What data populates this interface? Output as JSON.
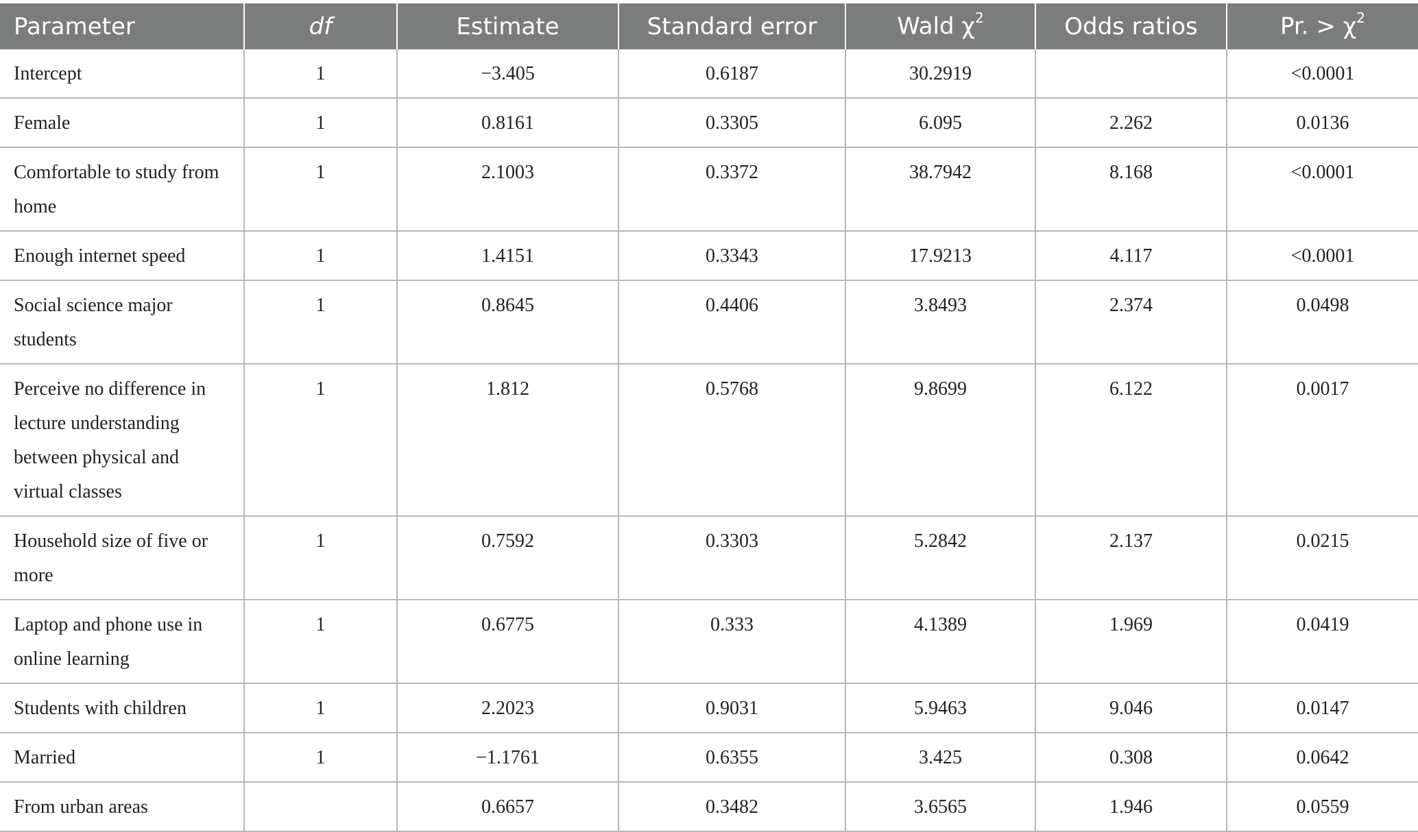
{
  "table": {
    "headers": {
      "parameter": "Parameter",
      "df": "df",
      "estimate": "Estimate",
      "standard_error": "Standard error",
      "wald_prefix": "Wald χ",
      "wald_sup": "2",
      "odds_ratios": "Odds ratios",
      "pr_prefix": "Pr. > χ",
      "pr_sup": "2"
    },
    "rows": [
      {
        "parameter": "Intercept",
        "df": "1",
        "estimate": "−3.405",
        "se": "0.6187",
        "wald": "30.2919",
        "odds": "",
        "pr": "<0.0001"
      },
      {
        "parameter": "Female",
        "df": "1",
        "estimate": "0.8161",
        "se": "0.3305",
        "wald": "6.095",
        "odds": "2.262",
        "pr": "0.0136"
      },
      {
        "parameter": "Comfortable to study from home",
        "df": "1",
        "estimate": "2.1003",
        "se": "0.3372",
        "wald": "38.7942",
        "odds": "8.168",
        "pr": "<0.0001"
      },
      {
        "parameter": "Enough internet speed",
        "df": "1",
        "estimate": "1.4151",
        "se": "0.3343",
        "wald": "17.9213",
        "odds": "4.117",
        "pr": "<0.0001"
      },
      {
        "parameter": "Social science major students",
        "df": "1",
        "estimate": "0.8645",
        "se": "0.4406",
        "wald": "3.8493",
        "odds": "2.374",
        "pr": "0.0498"
      },
      {
        "parameter": "Perceive no difference in lecture understanding between physical and virtual classes",
        "df": "1",
        "estimate": "1.812",
        "se": "0.5768",
        "wald": "9.8699",
        "odds": "6.122",
        "pr": "0.0017"
      },
      {
        "parameter": "Household size of five or more",
        "df": "1",
        "estimate": "0.7592",
        "se": "0.3303",
        "wald": "5.2842",
        "odds": "2.137",
        "pr": "0.0215"
      },
      {
        "parameter": "Laptop and phone use in online learning",
        "df": "1",
        "estimate": "0.6775",
        "se": "0.333",
        "wald": "4.1389",
        "odds": "1.969",
        "pr": "0.0419"
      },
      {
        "parameter": "Students with children",
        "df": "1",
        "estimate": "2.2023",
        "se": "0.9031",
        "wald": "5.9463",
        "odds": "9.046",
        "pr": "0.0147"
      },
      {
        "parameter": "Married",
        "df": "1",
        "estimate": "−1.1761",
        "se": "0.6355",
        "wald": "3.425",
        "odds": "0.308",
        "pr": "0.0642"
      },
      {
        "parameter": "From urban areas",
        "df": "",
        "estimate": "0.6657",
        "se": "0.3482",
        "wald": "3.6565",
        "odds": "1.946",
        "pr": "0.0559"
      }
    ]
  }
}
